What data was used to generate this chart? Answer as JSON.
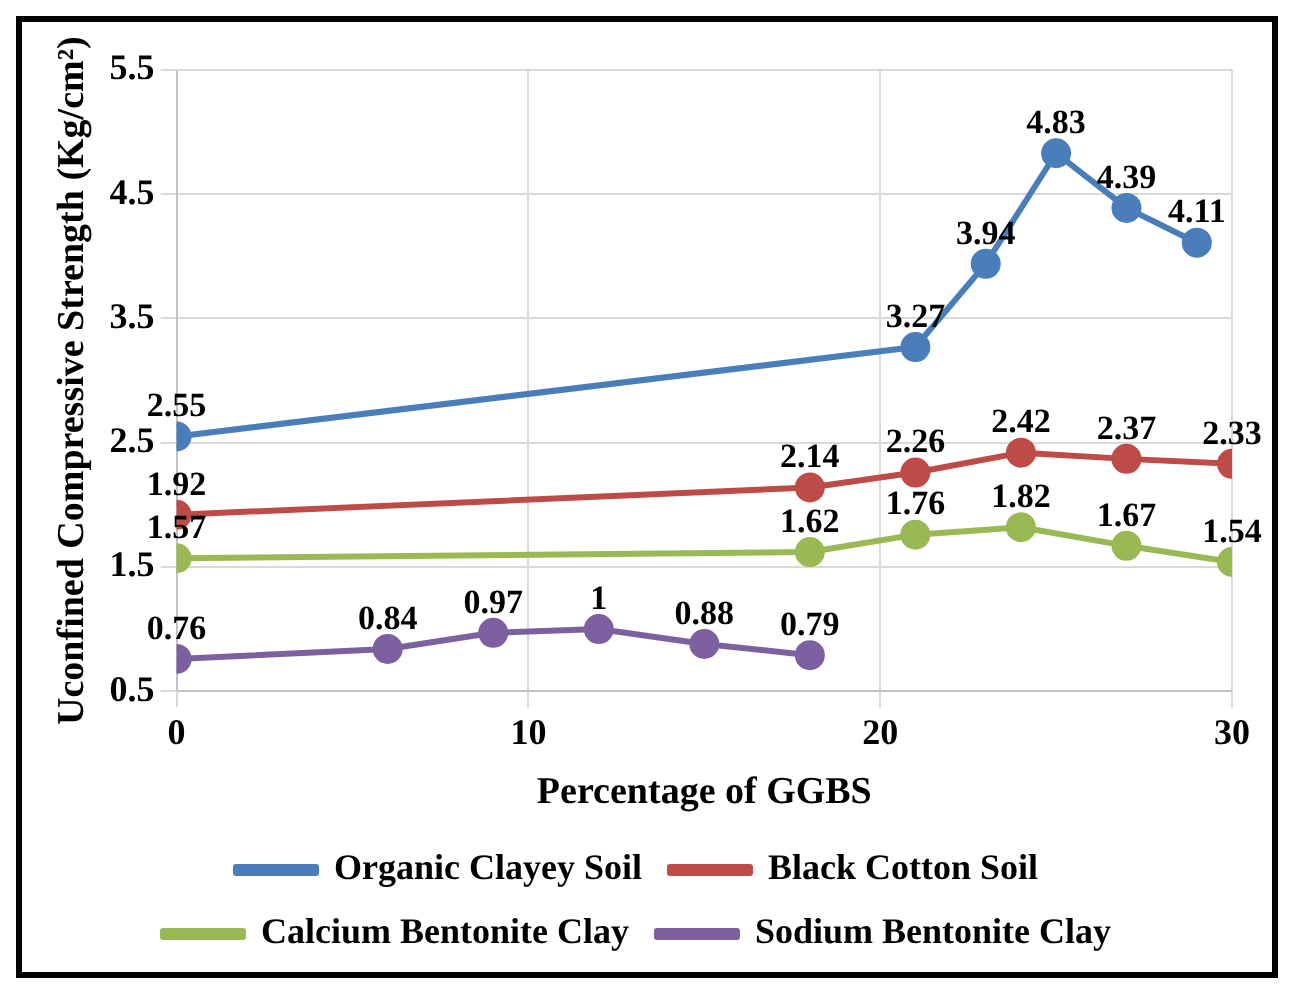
{
  "chart_data": {
    "type": "line",
    "xlabel": "Percentage of GGBS",
    "ylabel": "Uconfined Compressive Strength (Kg/cm²)",
    "xlim": [
      0,
      30
    ],
    "xticks": [
      0,
      10,
      20,
      30
    ],
    "ylim": [
      0.5,
      5.5
    ],
    "yticks": [
      0.5,
      1.5,
      2.5,
      3.5,
      4.5,
      5.5
    ],
    "grid": true,
    "legend": "bottom",
    "marker": "circle",
    "line_style": "solid",
    "data_labels": true,
    "series": [
      {
        "name": "Organic Clayey Soil",
        "color": "#4a7ebb",
        "x": [
          0,
          21,
          23,
          25,
          27,
          29
        ],
        "values": [
          2.55,
          3.27,
          3.94,
          4.83,
          4.39,
          4.11
        ]
      },
      {
        "name": "Black Cotton Soil",
        "color": "#be4b48",
        "x": [
          0,
          18,
          21,
          24,
          27,
          30
        ],
        "values": [
          1.92,
          2.14,
          2.26,
          2.42,
          2.37,
          2.33
        ]
      },
      {
        "name": "Calcium Bentonite Clay",
        "color": "#98b954",
        "x": [
          0,
          18,
          21,
          24,
          27,
          30
        ],
        "values": [
          1.57,
          1.62,
          1.76,
          1.82,
          1.67,
          1.54
        ]
      },
      {
        "name": "Sodium Bentonite Clay",
        "color": "#7d60a0",
        "x": [
          0,
          6,
          9,
          12,
          15,
          18
        ],
        "values": [
          0.76,
          0.84,
          0.97,
          1,
          0.88,
          0.79
        ]
      }
    ]
  }
}
